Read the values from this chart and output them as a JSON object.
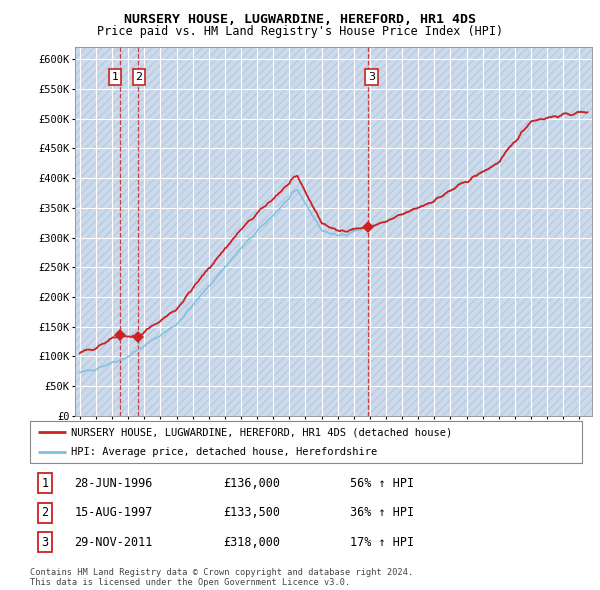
{
  "title": "NURSERY HOUSE, LUGWARDINE, HEREFORD, HR1 4DS",
  "subtitle": "Price paid vs. HM Land Registry's House Price Index (HPI)",
  "ylim": [
    0,
    620000
  ],
  "yticks": [
    0,
    50000,
    100000,
    150000,
    200000,
    250000,
    300000,
    350000,
    400000,
    450000,
    500000,
    550000,
    600000
  ],
  "ytick_labels": [
    "£0",
    "£50K",
    "£100K",
    "£150K",
    "£200K",
    "£250K",
    "£300K",
    "£350K",
    "£400K",
    "£450K",
    "£500K",
    "£550K",
    "£600K"
  ],
  "xlim_start": 1993.7,
  "xlim_end": 2025.8,
  "sale_dates": [
    1996.49,
    1997.62,
    2011.91
  ],
  "sale_prices": [
    136000,
    133500,
    318000
  ],
  "sale_labels": [
    "1",
    "2",
    "3"
  ],
  "hpi_color": "#7fbfdf",
  "sold_color": "#cc2222",
  "legend_label_sold": "NURSERY HOUSE, LUGWARDINE, HEREFORD, HR1 4DS (detached house)",
  "legend_label_hpi": "HPI: Average price, detached house, Herefordshire",
  "table_rows": [
    [
      "1",
      "28-JUN-1996",
      "£136,000",
      "56% ↑ HPI"
    ],
    [
      "2",
      "15-AUG-1997",
      "£133,500",
      "36% ↑ HPI"
    ],
    [
      "3",
      "29-NOV-2011",
      "£318,000",
      "17% ↑ HPI"
    ]
  ],
  "footnote": "Contains HM Land Registry data © Crown copyright and database right 2024.\nThis data is licensed under the Open Government Licence v3.0.",
  "background_chart": "#dce9f7",
  "grid_color": "#ffffff"
}
